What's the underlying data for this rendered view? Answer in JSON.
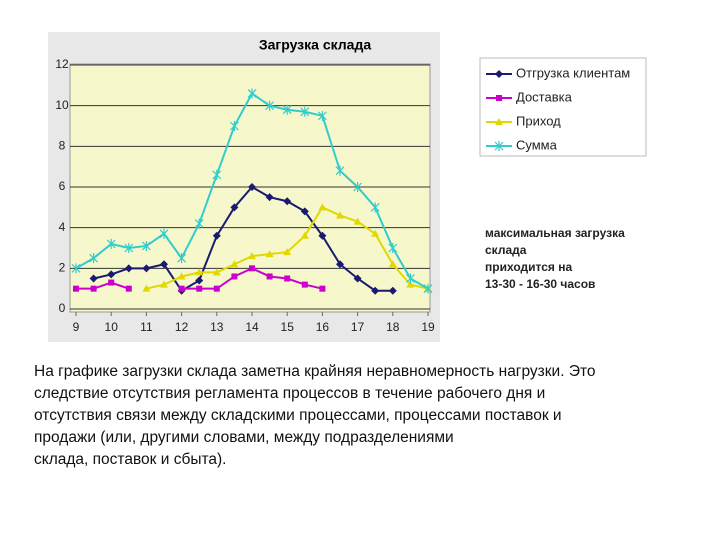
{
  "chart_data": {
    "type": "line",
    "title": "Загрузка склада",
    "x": [
      9,
      9.5,
      10,
      10.5,
      11,
      11.5,
      12,
      12.5,
      13,
      13.5,
      14,
      14.5,
      15,
      15.5,
      16,
      16.5,
      17,
      17.5,
      18,
      18.5,
      19
    ],
    "series": [
      {
        "name": "Отгрузка клиентам",
        "color": "#1a1a6e",
        "marker": "diamond",
        "values": [
          null,
          1.5,
          1.7,
          2.0,
          2.0,
          2.2,
          0.9,
          1.4,
          3.6,
          5.0,
          6.0,
          5.5,
          5.3,
          4.8,
          3.6,
          2.2,
          1.5,
          0.9,
          0.9,
          null,
          null
        ]
      },
      {
        "name": "Доставка",
        "color": "#cc00cc",
        "marker": "square",
        "values": [
          1.0,
          1.0,
          1.3,
          1.0,
          null,
          null,
          1.0,
          1.0,
          1.0,
          1.6,
          2.0,
          1.6,
          1.5,
          1.2,
          1.0,
          null,
          null,
          null,
          null,
          null,
          null
        ]
      },
      {
        "name": "Приход",
        "color": "#e0d800",
        "marker": "triangle",
        "values": [
          null,
          null,
          null,
          null,
          1.0,
          1.2,
          1.6,
          1.8,
          1.8,
          2.2,
          2.6,
          2.7,
          2.8,
          3.6,
          5.0,
          4.6,
          4.3,
          3.7,
          2.2,
          1.2,
          1.0
        ]
      },
      {
        "name": "Сумма",
        "color": "#33cccc",
        "marker": "star",
        "values": [
          2.0,
          2.5,
          3.2,
          3.0,
          3.1,
          3.7,
          2.5,
          4.2,
          6.6,
          9.0,
          10.6,
          10.0,
          9.8,
          9.7,
          9.5,
          6.8,
          6.0,
          5.0,
          3.0,
          1.5,
          1.0
        ]
      }
    ],
    "xlim": [
      9,
      19
    ],
    "xticks": [
      9,
      10,
      11,
      12,
      13,
      14,
      15,
      16,
      17,
      18,
      19
    ],
    "ylim": [
      0,
      12
    ],
    "yticks": [
      0,
      2,
      4,
      6,
      8,
      10,
      12
    ],
    "grid": true,
    "annotation": [
      "максимальная загрузка",
      "склада",
      "приходится на",
      "13-30 - 16-30 часов"
    ],
    "caption": [
      "На графике загрузки склада заметна крайняя неравномерность нагрузки. Это",
      "следствие отсутствия регламента процессов в течение рабочего дня и",
      "отсутствия связи между складскими процессами, процессами поставок и",
      "продажи (или, другими словами, между подразделениями",
      "склада, поставок и сбыта)."
    ]
  }
}
